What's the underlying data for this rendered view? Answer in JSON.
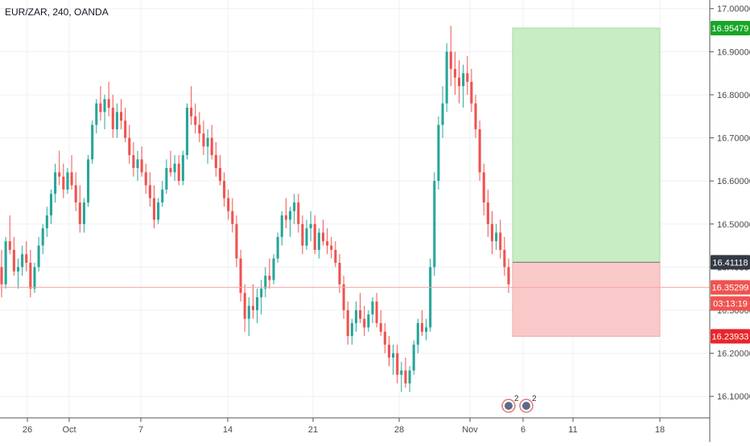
{
  "title": "EUR/ZAR, 240, OANDA",
  "colors": {
    "up": "#26a69a",
    "down": "#ef5350",
    "grid": "#eef0f3",
    "axis_text": "#4a4a4a",
    "current_price_line": "#f4a6a6",
    "target_zone": "#c8ecc4",
    "stop_zone": "#f9c9c9",
    "target_badge": "#18a627",
    "stop_badge": "#e8262c",
    "entry_badge": "#333a45",
    "price_badge": "#ef5350"
  },
  "chart_data": {
    "type": "candlestick",
    "title": "EUR/ZAR, 240, OANDA",
    "y_axis": {
      "min": 16.05,
      "max": 17.02,
      "ticks": [
        "17.00000",
        "16.90000",
        "16.80000",
        "16.70000",
        "16.60000",
        "16.50000",
        "16.40000",
        "16.30000",
        "16.20000",
        "16.10000"
      ]
    },
    "x_axis": {
      "ticks": [
        "26",
        "Oct",
        "7",
        "14",
        "21",
        "28",
        "Nov",
        "6",
        "11",
        "18"
      ]
    },
    "current_price": "16.35299",
    "countdown": "03:13:19",
    "position": {
      "entry": "16.41118",
      "target": "16.95479",
      "stop": "16.23933"
    },
    "event_markers": [
      "2",
      "2"
    ],
    "candles": [
      [
        16.4,
        16.44,
        16.33,
        16.36
      ],
      [
        16.36,
        16.47,
        16.35,
        16.46
      ],
      [
        16.46,
        16.52,
        16.43,
        16.44
      ],
      [
        16.44,
        16.47,
        16.38,
        16.39
      ],
      [
        16.39,
        16.42,
        16.35,
        16.4
      ],
      [
        16.4,
        16.45,
        16.38,
        16.43
      ],
      [
        16.43,
        16.46,
        16.39,
        16.41
      ],
      [
        16.41,
        16.44,
        16.33,
        16.35
      ],
      [
        16.35,
        16.41,
        16.34,
        16.4
      ],
      [
        16.4,
        16.47,
        16.39,
        16.45
      ],
      [
        16.45,
        16.5,
        16.43,
        16.49
      ],
      [
        16.49,
        16.54,
        16.47,
        16.52
      ],
      [
        16.52,
        16.58,
        16.5,
        16.57
      ],
      [
        16.57,
        16.64,
        16.55,
        16.62
      ],
      [
        16.62,
        16.67,
        16.59,
        16.61
      ],
      [
        16.61,
        16.64,
        16.56,
        16.58
      ],
      [
        16.58,
        16.63,
        16.57,
        16.62
      ],
      [
        16.62,
        16.66,
        16.58,
        16.59
      ],
      [
        16.59,
        16.62,
        16.53,
        16.55
      ],
      [
        16.55,
        16.59,
        16.48,
        16.5
      ],
      [
        16.5,
        16.56,
        16.48,
        16.55
      ],
      [
        16.55,
        16.66,
        16.54,
        16.65
      ],
      [
        16.65,
        16.74,
        16.64,
        16.73
      ],
      [
        16.73,
        16.79,
        16.71,
        16.78
      ],
      [
        16.78,
        16.82,
        16.74,
        16.76
      ],
      [
        16.76,
        16.8,
        16.72,
        16.79
      ],
      [
        16.79,
        16.83,
        16.75,
        16.77
      ],
      [
        16.77,
        16.8,
        16.7,
        16.72
      ],
      [
        16.72,
        16.78,
        16.7,
        16.76
      ],
      [
        16.76,
        16.79,
        16.72,
        16.74
      ],
      [
        16.74,
        16.77,
        16.69,
        16.7
      ],
      [
        16.7,
        16.73,
        16.64,
        16.66
      ],
      [
        16.66,
        16.69,
        16.61,
        16.63
      ],
      [
        16.63,
        16.67,
        16.6,
        16.65
      ],
      [
        16.65,
        16.68,
        16.61,
        16.62
      ],
      [
        16.62,
        16.64,
        16.57,
        16.59
      ],
      [
        16.59,
        16.62,
        16.54,
        16.56
      ],
      [
        16.56,
        16.59,
        16.49,
        16.51
      ],
      [
        16.51,
        16.56,
        16.5,
        16.55
      ],
      [
        16.55,
        16.6,
        16.54,
        16.58
      ],
      [
        16.58,
        16.65,
        16.57,
        16.63
      ],
      [
        16.63,
        16.67,
        16.61,
        16.62
      ],
      [
        16.62,
        16.66,
        16.6,
        16.64
      ],
      [
        16.64,
        16.66,
        16.59,
        16.6
      ],
      [
        16.6,
        16.67,
        16.59,
        16.66
      ],
      [
        16.66,
        16.78,
        16.65,
        16.77
      ],
      [
        16.77,
        16.82,
        16.73,
        16.75
      ],
      [
        16.75,
        16.78,
        16.71,
        16.73
      ],
      [
        16.73,
        16.76,
        16.69,
        16.71
      ],
      [
        16.71,
        16.74,
        16.66,
        16.68
      ],
      [
        16.68,
        16.72,
        16.64,
        16.7
      ],
      [
        16.7,
        16.73,
        16.65,
        16.66
      ],
      [
        16.66,
        16.69,
        16.61,
        16.63
      ],
      [
        16.63,
        16.66,
        16.59,
        16.6
      ],
      [
        16.6,
        16.62,
        16.54,
        16.56
      ],
      [
        16.56,
        16.58,
        16.51,
        16.53
      ],
      [
        16.53,
        16.56,
        16.48,
        16.5
      ],
      [
        16.5,
        16.52,
        16.4,
        16.42
      ],
      [
        16.42,
        16.44,
        16.32,
        16.34
      ],
      [
        16.34,
        16.36,
        16.25,
        16.28
      ],
      [
        16.28,
        16.33,
        16.24,
        16.31
      ],
      [
        16.31,
        16.36,
        16.28,
        16.3
      ],
      [
        16.3,
        16.35,
        16.27,
        16.33
      ],
      [
        16.33,
        16.37,
        16.29,
        16.35
      ],
      [
        16.35,
        16.4,
        16.33,
        16.38
      ],
      [
        16.38,
        16.42,
        16.35,
        16.37
      ],
      [
        16.37,
        16.43,
        16.36,
        16.42
      ],
      [
        16.42,
        16.48,
        16.41,
        16.47
      ],
      [
        16.47,
        16.53,
        16.45,
        16.52
      ],
      [
        16.52,
        16.56,
        16.49,
        16.51
      ],
      [
        16.51,
        16.54,
        16.47,
        16.53
      ],
      [
        16.53,
        16.57,
        16.5,
        16.55
      ],
      [
        16.55,
        16.57,
        16.48,
        16.5
      ],
      [
        16.5,
        16.52,
        16.43,
        16.45
      ],
      [
        16.45,
        16.51,
        16.44,
        16.49
      ],
      [
        16.49,
        16.53,
        16.46,
        16.5
      ],
      [
        16.5,
        16.52,
        16.43,
        16.44
      ],
      [
        16.44,
        16.49,
        16.42,
        16.48
      ],
      [
        16.48,
        16.51,
        16.45,
        16.46
      ],
      [
        16.46,
        16.49,
        16.43,
        16.45
      ],
      [
        16.45,
        16.47,
        16.42,
        16.44
      ],
      [
        16.44,
        16.46,
        16.4,
        16.41
      ],
      [
        16.41,
        16.43,
        16.34,
        16.36
      ],
      [
        16.36,
        16.38,
        16.28,
        16.3
      ],
      [
        16.3,
        16.32,
        16.22,
        16.24
      ],
      [
        16.24,
        16.28,
        16.22,
        16.27
      ],
      [
        16.27,
        16.32,
        16.25,
        16.3
      ],
      [
        16.3,
        16.34,
        16.27,
        16.28
      ],
      [
        16.28,
        16.31,
        16.24,
        16.26
      ],
      [
        16.26,
        16.3,
        16.25,
        16.29
      ],
      [
        16.29,
        16.33,
        16.27,
        16.32
      ],
      [
        16.32,
        16.34,
        16.26,
        16.27
      ],
      [
        16.27,
        16.3,
        16.24,
        16.25
      ],
      [
        16.25,
        16.27,
        16.2,
        16.22
      ],
      [
        16.22,
        16.24,
        16.17,
        16.19
      ],
      [
        16.19,
        16.22,
        16.15,
        16.2
      ],
      [
        16.2,
        16.22,
        16.13,
        16.15
      ],
      [
        16.15,
        16.18,
        16.11,
        16.16
      ],
      [
        16.16,
        16.19,
        16.12,
        16.13
      ],
      [
        16.13,
        16.17,
        16.11,
        16.16
      ],
      [
        16.16,
        16.23,
        16.15,
        16.22
      ],
      [
        16.22,
        16.28,
        16.2,
        16.27
      ],
      [
        16.27,
        16.3,
        16.24,
        16.25
      ],
      [
        16.25,
        16.28,
        16.23,
        16.26
      ],
      [
        16.26,
        16.42,
        16.25,
        16.4
      ],
      [
        16.4,
        16.62,
        16.38,
        16.6
      ],
      [
        16.6,
        16.75,
        16.58,
        16.73
      ],
      [
        16.73,
        16.82,
        16.7,
        16.78
      ],
      [
        16.78,
        16.92,
        16.76,
        16.9
      ],
      [
        16.9,
        16.96,
        16.82,
        16.86
      ],
      [
        16.86,
        16.9,
        16.8,
        16.84
      ],
      [
        16.84,
        16.88,
        16.78,
        16.82
      ],
      [
        16.82,
        16.87,
        16.77,
        16.85
      ],
      [
        16.85,
        16.89,
        16.8,
        16.83
      ],
      [
        16.83,
        16.86,
        16.76,
        16.78
      ],
      [
        16.78,
        16.8,
        16.7,
        16.72
      ],
      [
        16.72,
        16.74,
        16.6,
        16.62
      ],
      [
        16.62,
        16.64,
        16.52,
        16.55
      ],
      [
        16.55,
        16.58,
        16.47,
        16.5
      ],
      [
        16.5,
        16.53,
        16.43,
        16.46
      ],
      [
        16.46,
        16.5,
        16.44,
        16.48
      ],
      [
        16.48,
        16.51,
        16.42,
        16.44
      ],
      [
        16.44,
        16.47,
        16.38,
        16.4
      ],
      [
        16.4,
        16.42,
        16.34,
        16.36
      ]
    ]
  }
}
